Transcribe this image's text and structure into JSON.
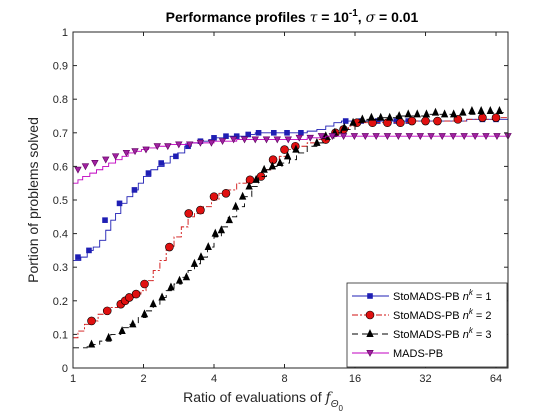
{
  "chart_data": {
    "type": "line",
    "title_parts": {
      "prefix": "Performance profiles ",
      "tau_symbol": "τ",
      "tau_eq": " = 10",
      "tau_exp": "-1",
      "sep": ", ",
      "sigma_symbol": "σ",
      "sigma_eq": " = 0.01"
    },
    "xlabel_parts": {
      "text": "Ratio of evaluations of ",
      "f": "f",
      "sub": "Θ",
      "subsub": "0"
    },
    "ylabel": "Portion of problems solved",
    "x_scale": "log2",
    "xlim": [
      1,
      72
    ],
    "ylim": [
      0,
      1
    ],
    "x_ticks": [
      1,
      2,
      4,
      8,
      16,
      32,
      64
    ],
    "y_ticks": [
      0,
      0.1,
      0.2,
      0.3,
      0.4,
      0.5,
      0.6,
      0.7,
      0.8,
      0.9,
      1
    ],
    "grid": false,
    "legend_position": "bottom-right",
    "series": [
      {
        "name_parts": {
          "base": "StoMADS-PB ",
          "n": "n",
          "sup": "k",
          "eq": " = 1"
        },
        "color": "#1f1fb4",
        "dash": "",
        "marker": "square",
        "x": [
          1,
          1.08,
          1.15,
          1.22,
          1.3,
          1.38,
          1.45,
          1.52,
          1.6,
          1.7,
          1.8,
          1.9,
          2.0,
          2.15,
          2.3,
          2.45,
          2.6,
          2.8,
          3.0,
          3.2,
          3.5,
          3.8,
          4.0,
          4.5,
          5.0,
          5.5,
          6.0,
          7.0,
          8.0,
          9.0,
          10,
          11,
          12,
          13,
          14,
          16,
          20,
          24,
          28,
          32,
          40,
          48,
          56,
          64,
          72
        ],
        "y": [
          0.32,
          0.33,
          0.35,
          0.36,
          0.38,
          0.41,
          0.44,
          0.46,
          0.49,
          0.51,
          0.53,
          0.55,
          0.57,
          0.59,
          0.6,
          0.61,
          0.63,
          0.64,
          0.66,
          0.67,
          0.675,
          0.68,
          0.685,
          0.69,
          0.69,
          0.695,
          0.7,
          0.7,
          0.7,
          0.7,
          0.705,
          0.71,
          0.72,
          0.73,
          0.735,
          0.735,
          0.735,
          0.735,
          0.735,
          0.735,
          0.735,
          0.74,
          0.74,
          0.74,
          0.74
        ],
        "marker_x": [
          1.05,
          1.17,
          1.37,
          1.58,
          1.83,
          2.1,
          2.38,
          2.75,
          3.1,
          3.5,
          4.0,
          4.5,
          5.0,
          5.6,
          6.2,
          7.2,
          8.2,
          9.4,
          14.6,
          17,
          20,
          24,
          27,
          32,
          36,
          44,
          56,
          64
        ],
        "marker_y": [
          0.33,
          0.35,
          0.44,
          0.49,
          0.53,
          0.58,
          0.61,
          0.63,
          0.66,
          0.675,
          0.685,
          0.69,
          0.69,
          0.695,
          0.7,
          0.7,
          0.7,
          0.7,
          0.735,
          0.735,
          0.735,
          0.735,
          0.735,
          0.735,
          0.735,
          0.74,
          0.74,
          0.74
        ]
      },
      {
        "name_parts": {
          "base": "StoMADS-PB ",
          "n": "n",
          "sup": "k",
          "eq": " = 2"
        },
        "color": "#d01010",
        "dash": "6 2 2 2",
        "marker": "circle",
        "x": [
          1,
          1.05,
          1.12,
          1.2,
          1.28,
          1.36,
          1.45,
          1.55,
          1.65,
          1.75,
          1.85,
          1.95,
          2.05,
          2.2,
          2.35,
          2.5,
          2.7,
          2.9,
          3.1,
          3.3,
          3.6,
          3.9,
          4.2,
          4.6,
          5.0,
          5.5,
          6.0,
          6.5,
          7.0,
          7.6,
          8.2,
          9.0,
          10,
          11,
          12,
          13,
          14,
          15,
          16,
          18,
          20,
          24,
          28,
          32,
          40,
          48,
          56,
          64,
          72
        ],
        "y": [
          0.09,
          0.11,
          0.13,
          0.14,
          0.16,
          0.17,
          0.18,
          0.19,
          0.2,
          0.21,
          0.22,
          0.23,
          0.26,
          0.29,
          0.32,
          0.36,
          0.39,
          0.42,
          0.45,
          0.46,
          0.48,
          0.5,
          0.52,
          0.53,
          0.55,
          0.56,
          0.57,
          0.59,
          0.61,
          0.63,
          0.65,
          0.66,
          0.67,
          0.68,
          0.69,
          0.7,
          0.71,
          0.72,
          0.73,
          0.73,
          0.73,
          0.73,
          0.735,
          0.735,
          0.735,
          0.74,
          0.74,
          0.745,
          0.745
        ],
        "marker_x": [
          1.2,
          1.4,
          1.6,
          1.67,
          1.74,
          1.86,
          2.02,
          2.58,
          3.12,
          3.5,
          4.0,
          4.5,
          5.7,
          6.35,
          7.15,
          8.0,
          8.9,
          12.0,
          13.2,
          14.3,
          16.3,
          19,
          22,
          25,
          28,
          32,
          36,
          44,
          56,
          64
        ],
        "marker_y": [
          0.14,
          0.17,
          0.19,
          0.2,
          0.21,
          0.22,
          0.25,
          0.36,
          0.46,
          0.47,
          0.51,
          0.52,
          0.56,
          0.57,
          0.62,
          0.65,
          0.66,
          0.68,
          0.7,
          0.71,
          0.73,
          0.73,
          0.73,
          0.73,
          0.735,
          0.735,
          0.735,
          0.74,
          0.745,
          0.745
        ]
      },
      {
        "name_parts": {
          "base": "StoMADS-PB ",
          "n": "n",
          "sup": "k",
          "eq": " = 3"
        },
        "color": "#000000",
        "dash": "6 4",
        "marker": "triangle-up",
        "x": [
          1,
          1.15,
          1.3,
          1.45,
          1.6,
          1.75,
          1.9,
          2.05,
          2.2,
          2.35,
          2.5,
          2.7,
          2.9,
          3.1,
          3.3,
          3.5,
          3.75,
          4.0,
          4.3,
          4.6,
          5.0,
          5.4,
          5.8,
          6.2,
          6.7,
          7.2,
          7.8,
          8.4,
          9.0,
          10,
          11,
          12,
          13,
          14,
          16,
          18,
          20,
          24,
          28,
          32,
          40,
          48,
          56,
          64,
          72
        ],
        "y": [
          0.06,
          0.07,
          0.08,
          0.1,
          0.12,
          0.13,
          0.15,
          0.17,
          0.19,
          0.21,
          0.23,
          0.25,
          0.27,
          0.29,
          0.31,
          0.33,
          0.36,
          0.39,
          0.42,
          0.45,
          0.48,
          0.51,
          0.54,
          0.57,
          0.59,
          0.6,
          0.61,
          0.62,
          0.64,
          0.66,
          0.67,
          0.68,
          0.7,
          0.71,
          0.73,
          0.74,
          0.745,
          0.75,
          0.75,
          0.755,
          0.755,
          0.755,
          0.76,
          0.76,
          0.765
        ],
        "marker_x": [
          1.2,
          1.42,
          1.62,
          1.8,
          2.02,
          2.2,
          2.4,
          2.62,
          2.85,
          3.05,
          3.3,
          3.52,
          3.78,
          4.05,
          4.3,
          4.65,
          4.95,
          5.3,
          5.65,
          6.05,
          6.55,
          7.1,
          7.65,
          8.25,
          8.95,
          11.0,
          12.0,
          13.1,
          14.4,
          15.7,
          17.2,
          18.8,
          20.6,
          22.5,
          24.7,
          27,
          29.5,
          32.3,
          35.3,
          38.6,
          42.2,
          46.2,
          50.5,
          55.3,
          60.5,
          66.2
        ],
        "marker_y": [
          0.07,
          0.09,
          0.11,
          0.13,
          0.16,
          0.19,
          0.21,
          0.24,
          0.26,
          0.27,
          0.31,
          0.33,
          0.36,
          0.4,
          0.41,
          0.44,
          0.48,
          0.51,
          0.54,
          0.56,
          0.59,
          0.6,
          0.61,
          0.63,
          0.65,
          0.67,
          0.69,
          0.7,
          0.715,
          0.73,
          0.74,
          0.745,
          0.745,
          0.745,
          0.75,
          0.755,
          0.755,
          0.755,
          0.76,
          0.755,
          0.755,
          0.76,
          0.765,
          0.765,
          0.765,
          0.765
        ]
      },
      {
        "name_parts": {
          "base": "MADS-PB",
          "n": "",
          "sup": "",
          "eq": ""
        },
        "color": "#c000c0",
        "dash": "",
        "marker": "triangle-down",
        "x": [
          1,
          1.05,
          1.1,
          1.18,
          1.26,
          1.34,
          1.42,
          1.52,
          1.62,
          1.72,
          1.84,
          1.96,
          2.1,
          2.3,
          2.5,
          2.8,
          3.1,
          3.5,
          4.0,
          5.0,
          6.0,
          8.0,
          10,
          12,
          14,
          16,
          20,
          24,
          28,
          32,
          40,
          48,
          56,
          64,
          72
        ],
        "y": [
          0.55,
          0.56,
          0.57,
          0.58,
          0.59,
          0.6,
          0.61,
          0.62,
          0.63,
          0.64,
          0.645,
          0.65,
          0.655,
          0.66,
          0.665,
          0.665,
          0.67,
          0.67,
          0.675,
          0.68,
          0.68,
          0.68,
          0.685,
          0.69,
          0.69,
          0.69,
          0.69,
          0.69,
          0.69,
          0.69,
          0.69,
          0.69,
          0.69,
          0.69,
          0.69
        ],
        "marker_x": [
          1.05,
          1.13,
          1.24,
          1.38,
          1.52,
          1.69,
          1.84,
          2.05,
          2.29,
          2.54,
          2.83,
          3.15,
          3.5,
          3.9,
          4.35,
          4.85,
          5.4,
          6.0,
          6.7,
          7.45,
          8.3,
          9.25,
          10.3,
          11.5,
          12.8,
          14.3,
          15.9,
          17.7,
          19.7,
          22,
          24.5,
          27.3,
          30.4,
          33.8,
          37.7,
          42,
          46.8,
          52.1,
          58,
          64.6,
          72
        ],
        "marker_y": [
          0.59,
          0.6,
          0.61,
          0.62,
          0.63,
          0.64,
          0.645,
          0.65,
          0.66,
          0.66,
          0.665,
          0.665,
          0.67,
          0.67,
          0.675,
          0.68,
          0.68,
          0.68,
          0.68,
          0.68,
          0.68,
          0.685,
          0.685,
          0.69,
          0.69,
          0.69,
          0.69,
          0.69,
          0.69,
          0.69,
          0.69,
          0.69,
          0.69,
          0.69,
          0.69,
          0.69,
          0.69,
          0.69,
          0.69,
          0.69,
          0.69
        ]
      }
    ]
  }
}
